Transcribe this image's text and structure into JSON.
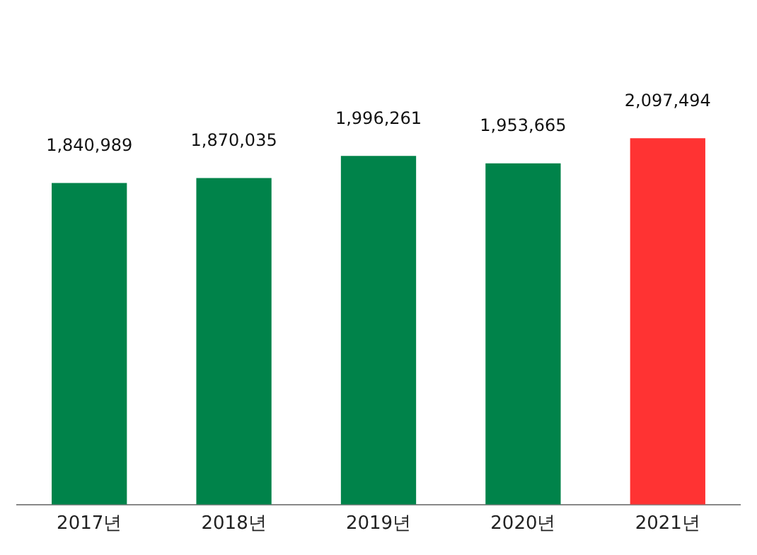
{
  "chart_data": {
    "type": "bar",
    "categories": [
      "2017년",
      "2018년",
      "2019년",
      "2020년",
      "2021년"
    ],
    "values": [
      1840989,
      1870035,
      1996261,
      1953665,
      2097494
    ],
    "colors": [
      "#00834a",
      "#00834a",
      "#00834a",
      "#00834a",
      "#ff3333"
    ],
    "value_labels": [
      "1,840,989",
      "1,870,035",
      "1,996,261",
      "1,953,665",
      "2,097,494"
    ],
    "tick_labels": "x",
    "grid": false,
    "legend": false
  }
}
